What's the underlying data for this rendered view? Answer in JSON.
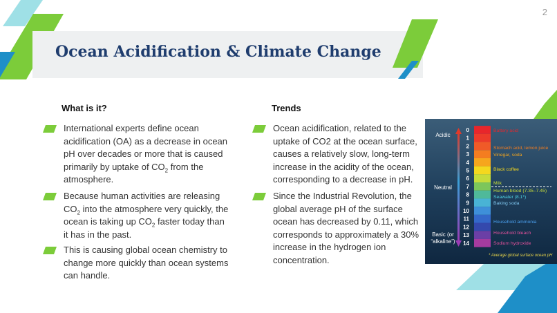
{
  "page_number": "2",
  "title": "Ocean Acidification & Climate Change",
  "columns": [
    {
      "heading": "What is it?",
      "bullets": [
        {
          "parts": [
            "International experts define ocean acidification (OA) as a decrease in ocean pH over decades or more that is caused primarily by uptake of CO",
            {
              "sub": "2"
            },
            " from the atmosphere."
          ]
        },
        {
          "parts": [
            "Because human activities are releasing CO",
            {
              "sub": "2"
            },
            " into the atmosphere very quickly, the ocean is taking up CO",
            {
              "sub": "2"
            },
            " faster today than it has in the past."
          ]
        },
        {
          "parts": [
            "This is causing global ocean chemistry to change more quickly than ocean systems can handle."
          ]
        }
      ]
    },
    {
      "heading": "Trends",
      "bullets": [
        {
          "parts": [
            "Ocean acidification, related to the uptake of CO2 at the ocean surface, causes a relatively slow, long-term increase in the acidity of the ocean, corresponding to a decrease in pH."
          ]
        },
        {
          "parts": [
            "Since the Industrial Revolution, the global average pH of the surface ocean has decreased by 0.11, which corresponds to approximately a 30% increase in the hydrogen ion concentration."
          ]
        }
      ]
    }
  ],
  "ph_image": {
    "side_labels": [
      "Acidic",
      "Neutral",
      "Basic (or",
      "“alkaline”)"
    ],
    "scale": [
      "0",
      "1",
      "2",
      "3",
      "4",
      "5",
      "6",
      "7",
      "8",
      "9",
      "10",
      "11",
      "12",
      "13",
      "14"
    ],
    "substances": [
      "Battery acid",
      "Stomach acid, lemon juice",
      "Vinegar, soda",
      "Black coffee",
      "Milk",
      "Human blood (7.35–7.45)",
      "Seawater (8.1*)",
      "Baking soda",
      "Household ammonia",
      "Household bleach",
      "Sodium hydroxide"
    ],
    "footnote": "* Average global surface ocean pH"
  }
}
